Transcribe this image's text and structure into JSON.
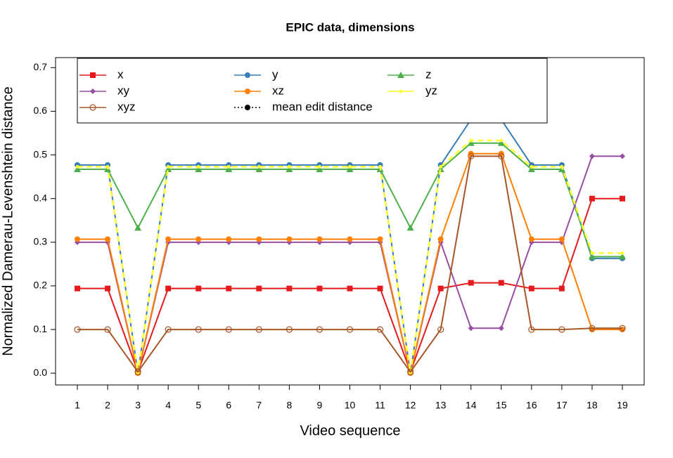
{
  "chart_data": {
    "type": "line",
    "title": "EPIC data, dimensions",
    "x_label": "Video sequence",
    "y_label": "Normalized Damerau-Levenshtein distance",
    "x": [
      1,
      2,
      3,
      4,
      5,
      6,
      7,
      8,
      9,
      10,
      11,
      12,
      13,
      14,
      15,
      16,
      17,
      18,
      19
    ],
    "xlim": [
      0.28,
      19.72
    ],
    "xticks": [
      1,
      2,
      3,
      4,
      5,
      6,
      7,
      8,
      9,
      10,
      11,
      12,
      13,
      14,
      15,
      16,
      17,
      18,
      19
    ],
    "ylim": [
      -0.027,
      0.723
    ],
    "yticks": [
      {
        "value": 0,
        "label": "0.0"
      },
      0.1,
      0.2,
      0.3,
      0.4,
      0.5,
      0.6,
      0.7
    ],
    "legend": "top-left",
    "series": [
      {
        "name": "x",
        "color": "#e41a1c",
        "marker": "square",
        "values": [
          0.194,
          0.194,
          0.003,
          0.194,
          0.194,
          0.194,
          0.194,
          0.194,
          0.194,
          0.194,
          0.194,
          0.003,
          0.194,
          0.207,
          0.207,
          0.194,
          0.194,
          0.4,
          0.4
        ]
      },
      {
        "name": "y",
        "color": "#377eb8",
        "marker": "circle",
        "values": [
          0.477,
          0.477,
          0.0,
          0.477,
          0.477,
          0.477,
          0.477,
          0.477,
          0.477,
          0.477,
          0.477,
          0.0,
          0.477,
          0.581,
          0.581,
          0.477,
          0.477,
          0.263,
          0.263
        ]
      },
      {
        "name": "z",
        "color": "#4daf4a",
        "marker": "triangle",
        "values": [
          0.467,
          0.467,
          0.333,
          0.467,
          0.467,
          0.467,
          0.467,
          0.467,
          0.467,
          0.467,
          0.467,
          0.333,
          0.467,
          0.527,
          0.527,
          0.467,
          0.467,
          0.267,
          0.267
        ]
      },
      {
        "name": "xy",
        "color": "#984ea3",
        "marker": "diamond",
        "values": [
          0.3,
          0.3,
          0.0,
          0.3,
          0.3,
          0.3,
          0.3,
          0.3,
          0.3,
          0.3,
          0.3,
          0.0,
          0.3,
          0.103,
          0.103,
          0.3,
          0.3,
          0.497,
          0.497
        ]
      },
      {
        "name": "xz",
        "color": "#ff7f00",
        "marker": "circle",
        "values": [
          0.307,
          0.307,
          0.0,
          0.307,
          0.307,
          0.307,
          0.307,
          0.307,
          0.307,
          0.307,
          0.307,
          0.0,
          0.307,
          0.503,
          0.503,
          0.307,
          0.307,
          0.1,
          0.1
        ]
      },
      {
        "name": "yz",
        "color": "#ffff33",
        "marker": "dot",
        "dashed": true,
        "values": [
          0.473,
          0.473,
          0.0,
          0.473,
          0.473,
          0.473,
          0.473,
          0.473,
          0.473,
          0.473,
          0.473,
          0.0,
          0.473,
          0.533,
          0.533,
          0.473,
          0.473,
          0.275,
          0.275
        ]
      },
      {
        "name": "xyz",
        "color": "#a65628",
        "marker": "open-circle",
        "values": [
          0.1,
          0.1,
          0.003,
          0.1,
          0.1,
          0.1,
          0.1,
          0.1,
          0.1,
          0.1,
          0.1,
          0.003,
          0.1,
          0.497,
          0.497,
          0.1,
          0.1,
          0.103,
          0.103
        ]
      },
      {
        "name": "mean edit distance",
        "color": "#000000",
        "marker": "circle",
        "dotted": true
      }
    ]
  }
}
